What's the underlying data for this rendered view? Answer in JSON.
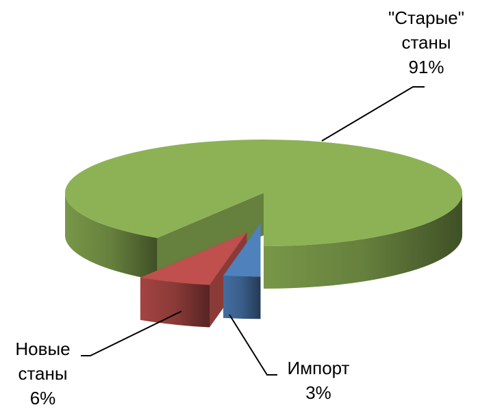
{
  "chart_data": {
    "type": "pie3d",
    "categories": [
      "\"Старые\" станы",
      "Новые станы",
      "Импорт"
    ],
    "values": [
      91,
      6,
      3
    ],
    "value_labels": [
      "91%",
      "6%",
      "3%"
    ],
    "colors": [
      "#8db255",
      "#c0504d",
      "#4f81bd"
    ]
  }
}
